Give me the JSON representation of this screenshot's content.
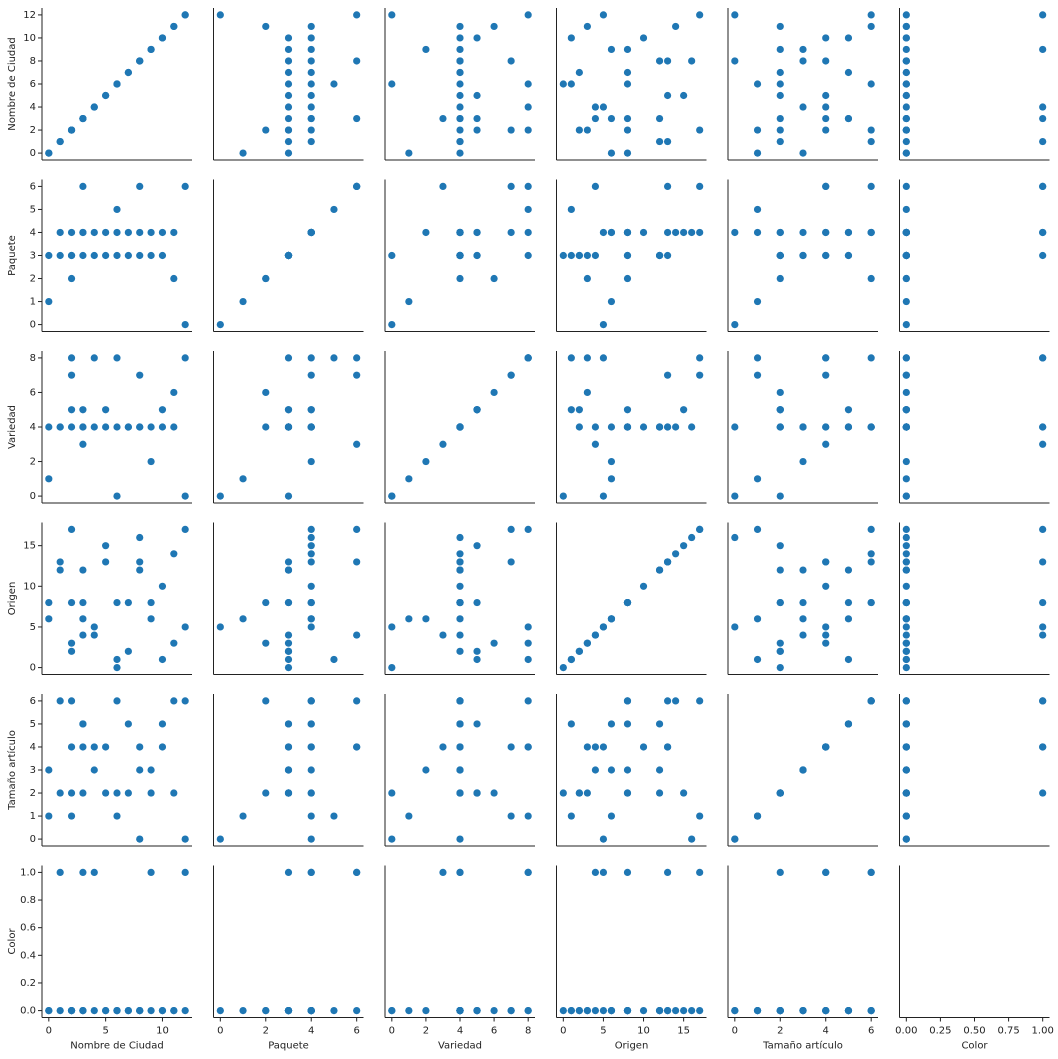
{
  "chart_data": {
    "type": "pairplot",
    "color": "#1f77b4",
    "variables": [
      {
        "name": "Nombre de Ciudad",
        "lim": [
          -0.6,
          12.6
        ],
        "xticks": [
          0,
          5,
          10
        ],
        "yticks": [
          0,
          2,
          4,
          6,
          8,
          10,
          12
        ]
      },
      {
        "name": "Paquete",
        "lim": [
          -0.3,
          6.3
        ],
        "xticks": [
          0,
          2,
          4,
          6
        ],
        "yticks": [
          0,
          1,
          2,
          3,
          4,
          5,
          6
        ]
      },
      {
        "name": "Variedad",
        "lim": [
          -0.4,
          8.4
        ],
        "xticks": [
          0,
          2,
          4,
          6,
          8
        ],
        "yticks": [
          0,
          2,
          4,
          6,
          8
        ]
      },
      {
        "name": "Origen",
        "lim": [
          -0.85,
          17.85
        ],
        "xticks": [
          0,
          5,
          10,
          15
        ],
        "yticks": [
          0,
          5,
          10,
          15
        ]
      },
      {
        "name": "Tamaño artículo",
        "lim": [
          -0.3,
          6.3
        ],
        "xticks": [
          0,
          2,
          4,
          6
        ],
        "yticks": [
          0,
          1,
          2,
          3,
          4,
          5,
          6
        ]
      },
      {
        "name": "Color",
        "lim": [
          -0.05,
          1.05
        ],
        "xticks": [
          {
            "value": 0,
            "label": "0.00"
          },
          {
            "value": 0.25,
            "label": "0.25"
          },
          {
            "value": 0.5,
            "label": "0.50"
          },
          {
            "value": 0.75,
            "label": "0.75"
          },
          {
            "value": 1,
            "label": "1.00"
          }
        ],
        "yticks": [
          {
            "value": 0,
            "label": "0.0"
          },
          0.2,
          0.4,
          0.6,
          0.8,
          {
            "value": 1,
            "label": "1.0"
          }
        ]
      }
    ],
    "rows": [
      [
        0,
        3,
        4,
        8,
        3,
        0
      ],
      [
        1,
        3,
        4,
        12,
        2,
        0
      ],
      [
        1,
        4,
        4,
        13,
        6,
        1
      ],
      [
        2,
        3,
        5,
        2,
        2,
        0
      ],
      [
        2,
        2,
        4,
        8,
        6,
        0
      ],
      [
        2,
        4,
        7,
        17,
        1,
        0
      ],
      [
        2,
        3,
        8,
        3,
        4,
        0
      ],
      [
        3,
        4,
        4,
        6,
        5,
        0
      ],
      [
        3,
        3,
        4,
        12,
        5,
        0
      ],
      [
        3,
        4,
        5,
        8,
        2,
        0
      ],
      [
        4,
        3,
        4,
        4,
        3,
        0
      ],
      [
        4,
        4,
        8,
        5,
        4,
        1
      ],
      [
        5,
        3,
        4,
        13,
        4,
        0
      ],
      [
        5,
        4,
        5,
        15,
        2,
        0
      ],
      [
        6,
        4,
        4,
        8,
        6,
        0
      ],
      [
        6,
        5,
        8,
        1,
        1,
        0
      ],
      [
        7,
        3,
        4,
        2,
        2,
        0
      ],
      [
        7,
        4,
        4,
        8,
        5,
        0
      ],
      [
        8,
        3,
        4,
        12,
        3,
        0
      ],
      [
        8,
        6,
        7,
        13,
        4,
        0
      ],
      [
        9,
        3,
        4,
        8,
        2,
        1
      ],
      [
        9,
        4,
        2,
        6,
        3,
        0
      ],
      [
        10,
        4,
        4,
        10,
        4,
        0
      ],
      [
        10,
        3,
        5,
        1,
        5,
        0
      ],
      [
        11,
        2,
        6,
        3,
        2,
        0
      ],
      [
        11,
        4,
        4,
        14,
        6,
        0
      ],
      [
        12,
        6,
        8,
        17,
        6,
        1
      ],
      [
        12,
        0,
        0,
        5,
        0,
        0
      ],
      [
        0,
        1,
        1,
        6,
        1,
        0
      ],
      [
        3,
        6,
        3,
        4,
        4,
        1
      ],
      [
        6,
        3,
        0,
        0,
        2,
        0
      ],
      [
        8,
        4,
        4,
        16,
        0,
        0
      ]
    ]
  }
}
